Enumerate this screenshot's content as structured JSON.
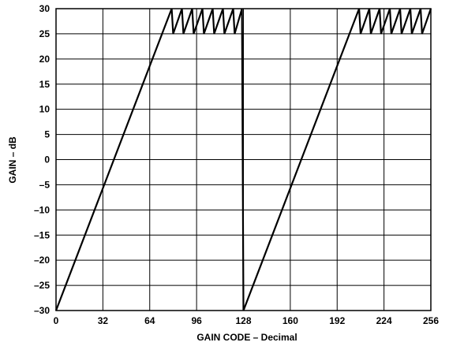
{
  "chart_data": {
    "type": "line",
    "title": "",
    "xlabel": "GAIN CODE – Decimal",
    "ylabel": "GAIN – dB",
    "xlim": [
      0,
      256
    ],
    "ylim": [
      -30,
      30
    ],
    "x_ticks": [
      0,
      32,
      64,
      96,
      128,
      160,
      192,
      224,
      256
    ],
    "y_ticks": [
      30,
      25,
      20,
      15,
      10,
      5,
      0,
      -5,
      -10,
      -15,
      -20,
      -25,
      -30
    ],
    "x_tick_labels": [
      "0",
      "32",
      "64",
      "96",
      "128",
      "160",
      "192",
      "224",
      "256"
    ],
    "y_tick_labels": [
      "30",
      "25",
      "20",
      "15",
      "10",
      "5",
      "0",
      "–5",
      "–10",
      "–15",
      "–20",
      "–25",
      "–30"
    ],
    "grid": true,
    "series": [
      {
        "x": [
          0,
          79,
          80,
          86,
          87,
          93,
          94,
          100,
          101,
          107,
          108,
          114,
          115,
          121,
          122,
          127,
          128,
          207,
          208,
          214,
          215,
          221,
          222,
          228,
          229,
          235,
          236,
          242,
          243,
          249,
          250,
          256
        ],
        "y": [
          -30,
          30,
          25,
          30,
          25,
          30,
          25,
          30,
          25,
          30,
          25,
          30,
          25,
          30,
          25,
          30,
          -30,
          30,
          25,
          30,
          25,
          30,
          25,
          30,
          25,
          30,
          25,
          30,
          25,
          30,
          25,
          30
        ]
      }
    ]
  }
}
